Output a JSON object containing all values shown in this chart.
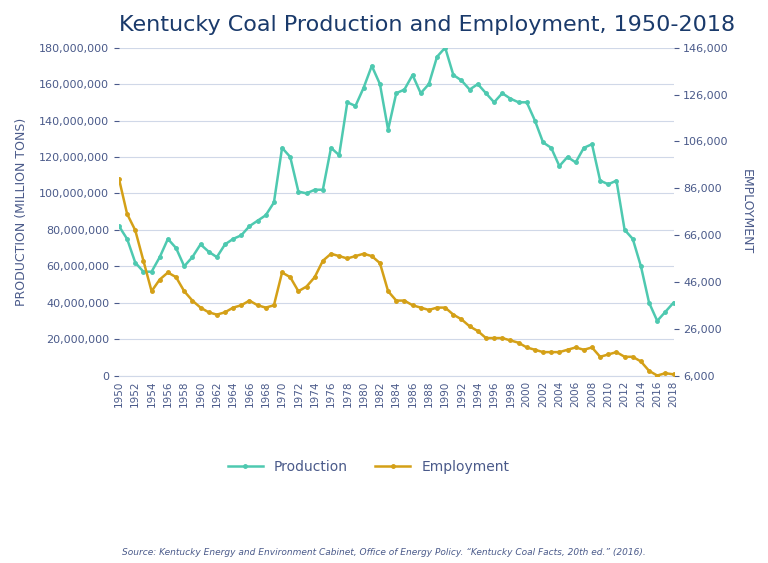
{
  "title": "Kentucky Coal Production and Employment, 1950-2018",
  "ylabel_left": "PRODUCTION (MILLION TONS)",
  "ylabel_right": "EMPLOYMENT",
  "source": "Source: Kentucky Energy and Environment Cabinet, Office of Energy Policy. “Kentucky Coal Facts, 20th ed.” (2016).",
  "legend_labels": [
    "Production",
    "Employment"
  ],
  "production_color": "#4EC9B0",
  "employment_color": "#D4A017",
  "background_color": "#FFFFFF",
  "title_color": "#1a3a6b",
  "axis_color": "#4a5a8a",
  "grid_color": "#d0d8e8",
  "years": [
    1950,
    1951,
    1952,
    1953,
    1954,
    1955,
    1956,
    1957,
    1958,
    1959,
    1960,
    1961,
    1962,
    1963,
    1964,
    1965,
    1966,
    1967,
    1968,
    1969,
    1970,
    1971,
    1972,
    1973,
    1974,
    1975,
    1976,
    1977,
    1978,
    1979,
    1980,
    1981,
    1982,
    1983,
    1984,
    1985,
    1986,
    1987,
    1988,
    1989,
    1990,
    1991,
    1992,
    1993,
    1994,
    1995,
    1996,
    1997,
    1998,
    1999,
    2000,
    2001,
    2002,
    2003,
    2004,
    2005,
    2006,
    2007,
    2008,
    2009,
    2010,
    2011,
    2012,
    2013,
    2014,
    2015,
    2016,
    2017,
    2018
  ],
  "production": [
    82000000,
    75000000,
    62000000,
    57000000,
    57000000,
    65000000,
    75000000,
    70000000,
    60000000,
    65000000,
    72000000,
    68000000,
    65000000,
    72000000,
    75000000,
    77000000,
    82000000,
    85000000,
    88000000,
    95000000,
    125000000,
    120000000,
    101000000,
    100000000,
    102000000,
    102000000,
    125000000,
    121000000,
    150000000,
    148000000,
    158000000,
    170000000,
    160000000,
    135000000,
    155000000,
    157000000,
    165000000,
    155000000,
    160000000,
    175000000,
    180000000,
    165000000,
    162000000,
    157000000,
    160000000,
    155000000,
    150000000,
    155000000,
    152000000,
    150000000,
    150000000,
    140000000,
    128000000,
    125000000,
    115000000,
    120000000,
    117000000,
    125000000,
    127000000,
    107000000,
    105000000,
    107000000,
    80000000,
    75000000,
    60000000,
    40000000,
    30000000,
    35000000,
    40000000
  ],
  "employment": [
    90000,
    75000,
    68000,
    55000,
    42000,
    47000,
    50000,
    48000,
    42000,
    38000,
    35000,
    33000,
    32000,
    33000,
    35000,
    36000,
    38000,
    36000,
    35000,
    36000,
    50000,
    48000,
    42000,
    44000,
    48000,
    55000,
    58000,
    57000,
    56000,
    57000,
    58000,
    57000,
    54000,
    42000,
    38000,
    38000,
    36000,
    35000,
    34000,
    35000,
    35000,
    32000,
    30000,
    27000,
    25000,
    22000,
    22000,
    22000,
    21000,
    20000,
    18000,
    17000,
    16000,
    16000,
    16000,
    17000,
    18000,
    17000,
    18000,
    14000,
    15000,
    16000,
    14000,
    14000,
    12000,
    8000,
    6000,
    7000,
    6500
  ],
  "ylim_left": [
    0,
    180000000
  ],
  "ylim_right": [
    6000,
    146000
  ],
  "yticks_left": [
    0,
    20000000,
    40000000,
    60000000,
    80000000,
    100000000,
    120000000,
    140000000,
    160000000,
    180000000
  ],
  "yticks_right": [
    6000,
    26000,
    46000,
    66000,
    86000,
    106000,
    126000,
    146000
  ],
  "xlim": [
    1950,
    2018
  ]
}
